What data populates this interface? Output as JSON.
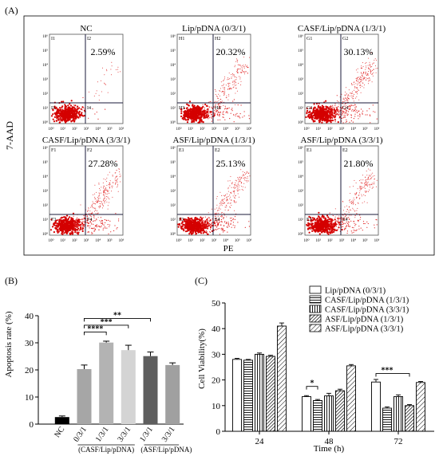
{
  "panel_labels": {
    "a": "(A)",
    "b": "(B)",
    "c": "(C)"
  },
  "colors": {
    "dots": "#e02020",
    "dense": "#d40000"
  },
  "chart_data": [
    {
      "type": "scatter",
      "panel": "(A)",
      "xlabel": "PE",
      "ylabel": "7-AAD",
      "tick_labels": [
        "10⁰",
        "10¹",
        "10²",
        "10³",
        "10⁴",
        "10⁵",
        "10⁶"
      ],
      "plots": [
        {
          "title": "NC",
          "percent": "2.59%",
          "quadrants": [
            "I1",
            "I2",
            "I3",
            "I4"
          ],
          "scatter": 0.15
        },
        {
          "title": "Lip/pDNA (0/3/1)",
          "percent": "20.32%",
          "quadrants": [
            "H1",
            "H2",
            "H3",
            "H4"
          ],
          "scatter": 1.0
        },
        {
          "title": "CASF/Lip/pDNA (1/3/1)",
          "percent": "30.13%",
          "quadrants": [
            "G1",
            "G2",
            "G3",
            "G4"
          ],
          "scatter": 1.3
        },
        {
          "title": "CASF/Lip/pDNA (3/3/1)",
          "percent": "27.28%",
          "quadrants": [
            "F1",
            "F2",
            "F3",
            "F4"
          ],
          "scatter": 1.2
        },
        {
          "title": "ASF/Lip/pDNA (1/3/1)",
          "percent": "25.13%",
          "quadrants": [
            "E1",
            "E2",
            "E3",
            "E4"
          ],
          "scatter": 1.1
        },
        {
          "title": "ASF/Lip/pDNA (3/3/1)",
          "percent": "21.80%",
          "quadrants": [
            "E1",
            "E2",
            "E3",
            "E4"
          ],
          "scatter": 1.0
        }
      ]
    },
    {
      "type": "bar",
      "panel": "(B)",
      "ylabel": "Apoptosis rate (%)",
      "ylim": [
        0,
        40
      ],
      "yticks": [
        "0",
        "10",
        "20",
        "30",
        "40"
      ],
      "categories": [
        "NC",
        "0/3/1",
        "1/3/1",
        "3/3/1",
        "1/3/1",
        "3/3/1"
      ],
      "values": [
        2.6,
        20.3,
        30.1,
        27.3,
        25.1,
        21.8
      ],
      "errors": [
        0.4,
        1.5,
        0.5,
        1.8,
        1.5,
        0.8
      ],
      "colors": [
        "#000000",
        "#a6a6a6",
        "#b3b3b3",
        "#d4d4d4",
        "#5e5e5e",
        "#a0a0a0"
      ],
      "group_labels": [
        "(CASF/Lip/pDNA)",
        "(ASF/Lip/pDNA)"
      ],
      "significance": [
        "****",
        "***",
        "**"
      ]
    },
    {
      "type": "bar",
      "panel": "(C)",
      "xlabel": "Time (h)",
      "ylabel": "Cell Viability(%)",
      "ylim": [
        0,
        50
      ],
      "yticks": [
        "0",
        "10",
        "20",
        "30",
        "40",
        "50"
      ],
      "categories": [
        "24",
        "48",
        "72"
      ],
      "series": [
        {
          "name": "Lip/pDNA (0/3/1)",
          "pattern": "none",
          "values": [
            28.0,
            13.5,
            19.2
          ],
          "errors": [
            0.4,
            0.4,
            1.0
          ]
        },
        {
          "name": "CASF/Lip/pDNA (1/3/1)",
          "pattern": "hlines",
          "values": [
            27.7,
            12.0,
            9.0
          ],
          "errors": [
            0.3,
            0.4,
            0.5
          ]
        },
        {
          "name": "CASF/Lip/pDNA (3/3/1)",
          "pattern": "vlines",
          "values": [
            30.0,
            13.8,
            13.5
          ],
          "errors": [
            0.5,
            1.0,
            0.7
          ]
        },
        {
          "name": "ASF/Lip/pDNA (1/3/1)",
          "pattern": "diag-dense",
          "values": [
            29.2,
            15.8,
            10.0
          ],
          "errors": [
            0.4,
            0.6,
            0.4
          ]
        },
        {
          "name": "ASF/Lip/pDNA (3/3/1)",
          "pattern": "diag",
          "values": [
            41.0,
            25.5,
            19.0
          ],
          "errors": [
            1.2,
            0.5,
            0.4
          ]
        }
      ],
      "significance": [
        "*",
        "***"
      ]
    }
  ]
}
